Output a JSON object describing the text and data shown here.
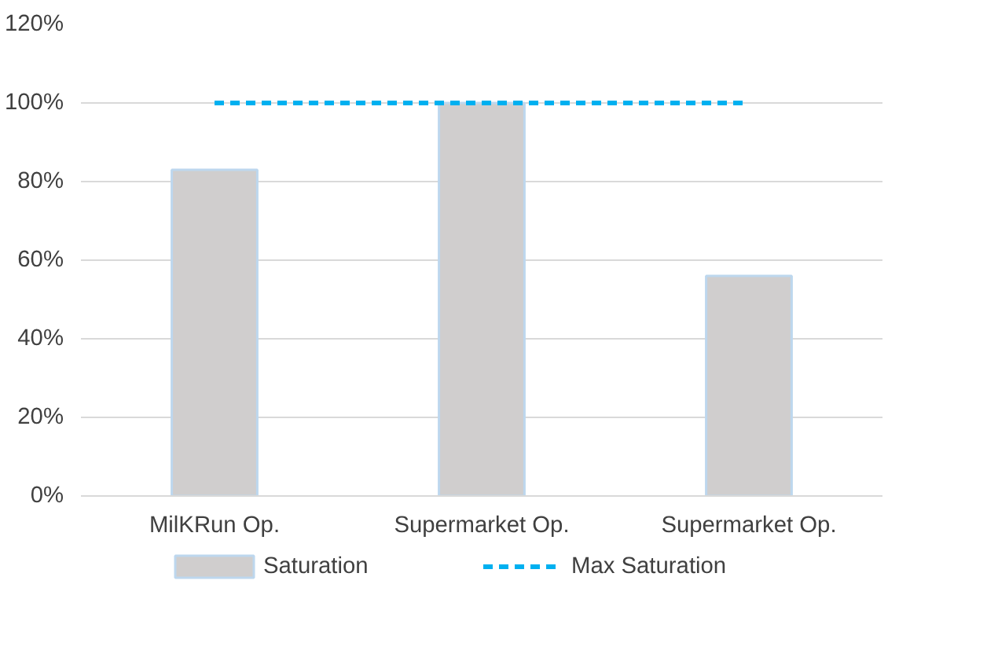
{
  "chart_data": {
    "type": "bar",
    "categories": [
      "MilKRun Op.",
      "Supermarket Op.",
      "Supermarket Op."
    ],
    "series": [
      {
        "name": "Saturation",
        "color": "#d0cece",
        "values": [
          83,
          100,
          56
        ]
      },
      {
        "name": "Max Saturation",
        "type": "line",
        "color": "#00b0f0",
        "line_style": "dashed",
        "values": [
          100,
          100,
          100
        ]
      }
    ],
    "ylim": [
      0,
      120
    ],
    "yticks": [
      {
        "value": 0,
        "label": "0%"
      },
      {
        "value": 20,
        "label": "20%"
      },
      {
        "value": 40,
        "label": "40%"
      },
      {
        "value": 60,
        "label": "60%"
      },
      {
        "value": 80,
        "label": "80%"
      },
      {
        "value": 100,
        "label": "100%"
      },
      {
        "value": 120,
        "label": "120%"
      }
    ],
    "grid": "y",
    "legend": "bottom"
  }
}
